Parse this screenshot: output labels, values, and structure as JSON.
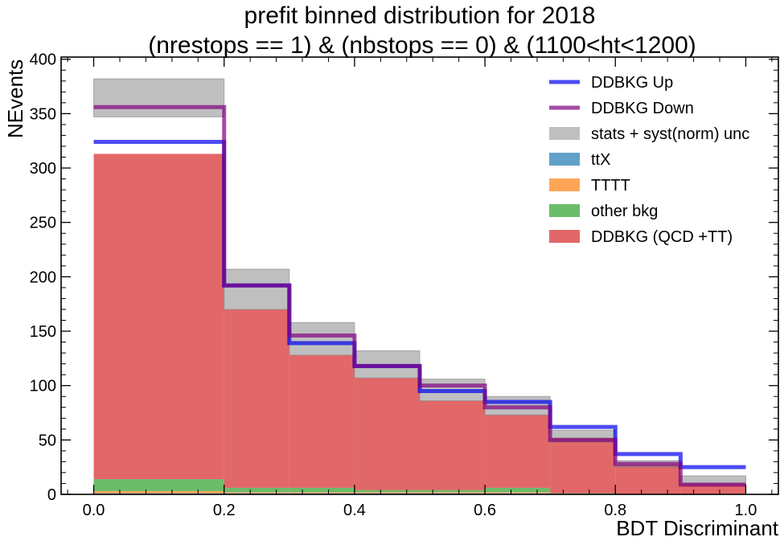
{
  "chart_data": {
    "type": "bar",
    "title": "prefit binned distribution for 2018",
    "subtitle": "(nrestops == 1) & (nbstops == 0) & (1100<ht<1200)",
    "xlabel": "BDT Discriminant",
    "ylabel": "NEvents",
    "xlim": [
      -0.05,
      1.05
    ],
    "ylim": [
      0,
      402
    ],
    "x_ticks": [
      0.0,
      0.2,
      0.4,
      0.6,
      0.8,
      1.0
    ],
    "x_tick_labels": [
      "0.0",
      "0.2",
      "0.4",
      "0.6",
      "0.8",
      "1.0"
    ],
    "y_ticks": [
      0,
      50,
      100,
      150,
      200,
      250,
      300,
      350,
      400
    ],
    "y_tick_labels": [
      "0",
      "50",
      "100",
      "150",
      "200",
      "250",
      "300",
      "350",
      "400"
    ],
    "bin_edges": [
      0.0,
      0.2,
      0.3,
      0.4,
      0.5,
      0.6,
      0.7,
      0.8,
      0.9,
      1.0
    ],
    "legend_position": "top-right",
    "stack": [
      {
        "name": "ttX",
        "color": "#1f77b4",
        "values": [
          1,
          1,
          1,
          1,
          1,
          1,
          0,
          0,
          0
        ]
      },
      {
        "name": "TTTT",
        "color": "#ff7f0e",
        "values": [
          2,
          1,
          1,
          1,
          1,
          1,
          0,
          0,
          0
        ]
      },
      {
        "name": "other bkg",
        "color": "#2ca02c",
        "values": [
          11,
          4,
          4,
          2,
          2,
          4,
          1,
          0,
          0
        ]
      },
      {
        "name": "DDBKG (QCD +TT)",
        "color": "#d62728",
        "values": [
          299,
          164,
          122,
          103,
          82,
          67,
          51,
          27,
          10
        ]
      }
    ],
    "uncertainty": {
      "name": "stats + syst(norm) unc",
      "color": "#808080",
      "low": [
        347,
        170,
        128,
        107,
        86,
        73,
        48,
        25,
        9
      ],
      "high": [
        382,
        207,
        158,
        132,
        106,
        90,
        59,
        31,
        17
      ]
    },
    "step_lines": [
      {
        "name": "DDBKG Up",
        "color": "#0000ee",
        "values": [
          324,
          192,
          139,
          118,
          95,
          85,
          62,
          37,
          25
        ]
      },
      {
        "name": "DDBKG Down",
        "color": "#800080",
        "values": [
          356,
          192,
          146,
          118,
          100,
          80,
          50,
          28,
          9
        ]
      }
    ],
    "legend": [
      "DDBKG Up",
      "DDBKG Down",
      "stats + syst(norm) unc",
      "ttX",
      "TTTT",
      "other bkg",
      "DDBKG (QCD +TT)"
    ]
  }
}
